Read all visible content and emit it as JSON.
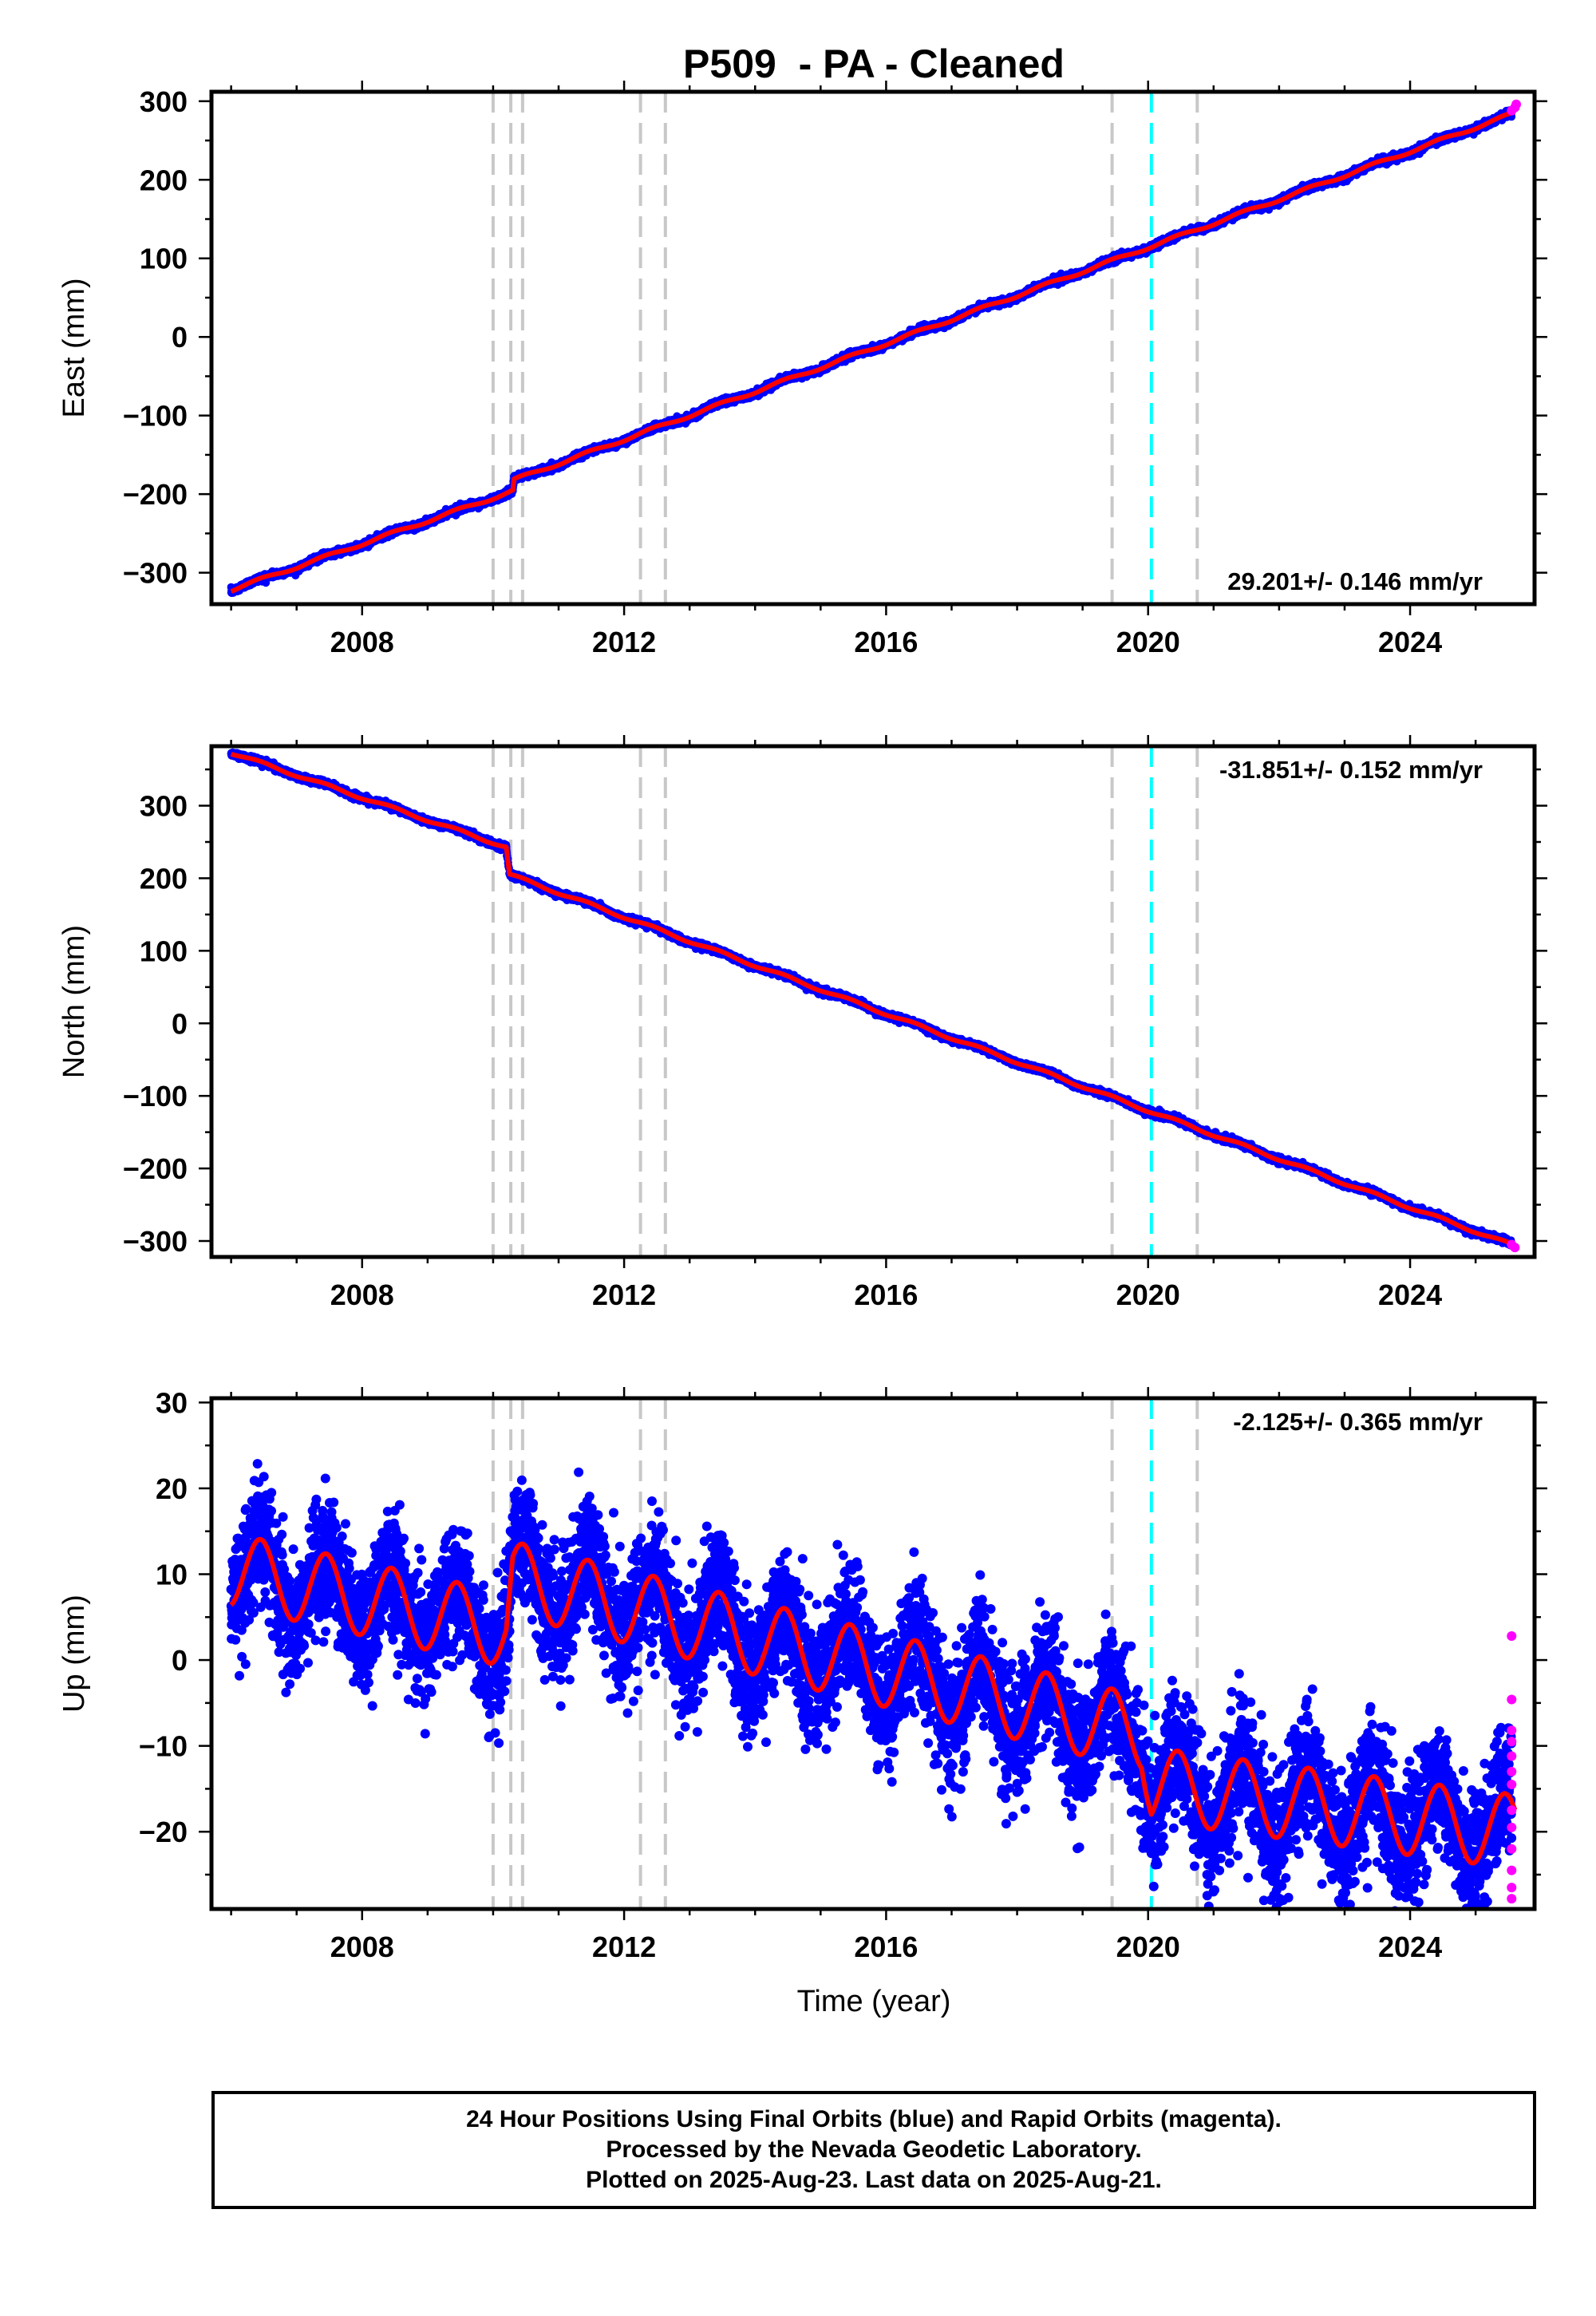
{
  "title": "P509  - PA - Cleaned",
  "xlabel": "Time (year)",
  "colors": {
    "final_orbits": "#0000ff",
    "rapid_orbits": "#ff00ff",
    "model": "#ff0000",
    "event_line": "#c8c8c8",
    "highlight_event_line": "#00ffff"
  },
  "footer": {
    "line1": "24 Hour Positions Using Final Orbits (blue) and Rapid Orbits (magenta).",
    "line2": "Processed by the Nevada Geodetic Laboratory.",
    "line3": "Plotted on 2025-Aug-23. Last data on 2025-Aug-21."
  },
  "chart_data": [
    {
      "type": "scatter",
      "ylabel": "East (mm)",
      "rate_label": "29.201+/- 0.146 mm/yr",
      "xlim": [
        2005.7,
        2025.9
      ],
      "ylim": [
        -340,
        312
      ],
      "x_ticks": [
        2008,
        2012,
        2016,
        2020,
        2024
      ],
      "y_ticks": [
        -300,
        -200,
        -100,
        0,
        100,
        200,
        300
      ],
      "event_lines": [
        2010.0,
        2010.27,
        2010.45,
        2012.25,
        2012.63,
        2019.45,
        2020.75
      ],
      "highlight_event_lines": [
        2020.05
      ],
      "trend": {
        "x": [
          2006.0,
          2010.3,
          2010.32,
          2025.6
        ],
        "y": [
          -322,
          -196,
          -182,
          285
        ]
      },
      "seasonal_amplitude": 2,
      "scatter_sigma": 2,
      "rapid_points": {
        "x": [
          2025.55,
          2025.6,
          2025.62
        ],
        "y": [
          288,
          292,
          296
        ]
      }
    },
    {
      "type": "scatter",
      "ylabel": "North (mm)",
      "rate_label": "-31.851+/- 0.152 mm/yr",
      "xlim": [
        2005.7,
        2025.9
      ],
      "ylim": [
        -322,
        382
      ],
      "x_ticks": [
        2008,
        2012,
        2016,
        2020,
        2024
      ],
      "y_ticks": [
        -300,
        -200,
        -100,
        0,
        100,
        200,
        300
      ],
      "event_lines": [
        2010.0,
        2010.27,
        2010.45,
        2012.25,
        2012.63,
        2019.45,
        2020.75
      ],
      "highlight_event_lines": [
        2020.05
      ],
      "trend": {
        "x": [
          2006.0,
          2010.2,
          2010.25,
          2025.6
        ],
        "y": [
          373,
          243,
          205,
          -307
        ]
      },
      "seasonal_amplitude": 2,
      "scatter_sigma": 2,
      "rapid_points": {
        "x": [
          2025.55,
          2025.6
        ],
        "y": [
          -305,
          -309
        ]
      }
    },
    {
      "type": "scatter",
      "ylabel": "Up (mm)",
      "rate_label": "-2.125+/- 0.365 mm/yr",
      "xlim": [
        2005.7,
        2025.9
      ],
      "ylim": [
        -29,
        30.5
      ],
      "x_ticks": [
        2008,
        2012,
        2016,
        2020,
        2024
      ],
      "y_ticks": [
        -20,
        -10,
        0,
        10,
        20,
        30
      ],
      "event_lines": [
        2010.0,
        2010.27,
        2010.45,
        2012.25,
        2012.63,
        2019.45,
        2020.75
      ],
      "highlight_event_lines": [
        2020.05
      ],
      "trend": {
        "x": [
          2006.0,
          2010.2,
          2010.3,
          2019.9,
          2020.05,
          2025.6
        ],
        "y": [
          10.5,
          3.5,
          9.5,
          -8.5,
          -14.5,
          -20
        ]
      },
      "seasonal_amplitude": 4.3,
      "scatter_sigma": 3.6,
      "rapid_points": {
        "x": [
          2025.55,
          2025.55,
          2025.55,
          2025.55,
          2025.55,
          2025.55,
          2025.55,
          2025.55,
          2025.55,
          2025.55,
          2025.55,
          2025.55,
          2025.55
        ],
        "y": [
          2.8,
          -4.6,
          -8.2,
          -9.5,
          -11.2,
          -13,
          -14.5,
          -17.5,
          -19.5,
          -22,
          -24.5,
          -26.5,
          -27.8
        ]
      }
    }
  ]
}
